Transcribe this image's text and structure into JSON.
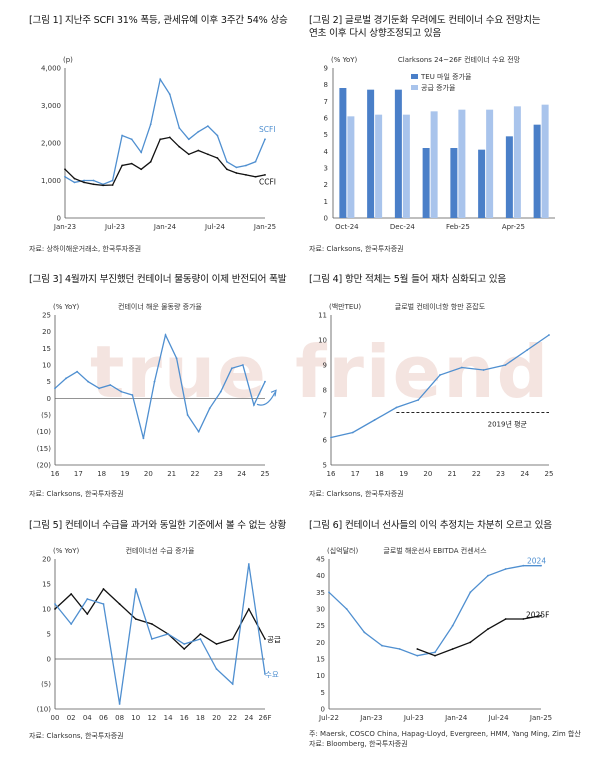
{
  "watermark": "true friend",
  "charts": {
    "c1": {
      "title": "[그림 1] 지난주 SCFI 31% 폭등, 관세유예 이후 3주간 54% 상승",
      "source": "자료: 상하이해운거래소, 한국투자증권",
      "unit": "(p)",
      "yticks": [
        "4,000",
        "3,000",
        "2,000",
        "1,000",
        "0"
      ],
      "xticks": [
        "Jan-23",
        "Jul-23",
        "Jan-24",
        "Jul-24",
        "Jan-25"
      ],
      "label_a": "SCFI",
      "label_b": "CCFI"
    },
    "c2": {
      "title": "[그림 2] 글로벌 경기둔화 우려에도 컨테이너 수요 전망치는\n연초 이후 다시 상향조정되고 있음",
      "source": "자료: Clarksons, 한국투자증권",
      "unit": "(% YoY)",
      "chart_title": "Clarksons 24~26F 컨테이너 수요 전망",
      "legend_a": "TEU 마일 증가율",
      "legend_b": "공급 증가율",
      "yticks": [
        "9",
        "8",
        "7",
        "6",
        "5",
        "4",
        "3",
        "2",
        "1",
        "0"
      ],
      "xticks": [
        "Oct-24",
        "Dec-24",
        "Feb-25",
        "Apr-25"
      ]
    },
    "c3": {
      "title": "[그림 3] 4월까지 부진했던 컨테이너 물동량이 이제 반전되어 폭발",
      "source": "자료: Clarksons, 한국투자증권",
      "unit": "(% YoY)",
      "chart_title": "컨테이너 해운 물동량 증가율",
      "yticks": [
        "25",
        "20",
        "15",
        "10",
        "5",
        "0",
        "(5)",
        "(10)",
        "(15)",
        "(20)"
      ],
      "xticks": [
        "16",
        "17",
        "18",
        "19",
        "20",
        "21",
        "22",
        "23",
        "24",
        "25"
      ]
    },
    "c4": {
      "title": "[그림 4] 항만 적체는 5월 들어 재차 심화되고 있음",
      "source": "자료: Clarksons, 한국투자증권",
      "unit": "(백만TEU)",
      "chart_title": "글로벌 컨테이너항 항만 혼잡도",
      "yticks": [
        "11",
        "10",
        "9",
        "8",
        "7",
        "6",
        "5"
      ],
      "xticks": [
        "16",
        "17",
        "18",
        "19",
        "20",
        "21",
        "22",
        "23",
        "24",
        "25"
      ],
      "annotation": "2019년 평균"
    },
    "c5": {
      "title": "[그림 5] 컨테이너 수급을 과거와 동일한 기준에서 볼 수 없는 상황",
      "source": "자료: Clarksons, 한국투자증권",
      "unit": "(% YoY)",
      "chart_title": "컨테이너선 수급 증가율",
      "yticks": [
        "20",
        "15",
        "10",
        "5",
        "0",
        "(5)",
        "(10)"
      ],
      "xticks": [
        "00",
        "02",
        "04",
        "06",
        "08",
        "10",
        "12",
        "14",
        "16",
        "18",
        "20",
        "22",
        "24",
        "26F"
      ],
      "label_a": "공급",
      "label_b": "수요"
    },
    "c6": {
      "title": "[그림 6] 컨테이너 선사들의 이익 추정치는 차분히 오르고 있음",
      "source_line1": "주: Maersk, COSCO China, Hapag-Lloyd, Evergreen, HMM, Yang Ming, Zim 합산",
      "source_line2": "자료: Bloomberg, 한국투자증권",
      "unit": "(십억달러)",
      "chart_title": "글로벌 해운선사 EBITDA 컨센서스",
      "yticks": [
        "45",
        "40",
        "35",
        "30",
        "25",
        "20",
        "15",
        "10",
        "5",
        "0"
      ],
      "xticks": [
        "Jul-22",
        "Jan-23",
        "Jul-23",
        "Jan-24",
        "Jul-24",
        "Jan-25"
      ],
      "label_a": "2024",
      "label_b": "2025F"
    }
  },
  "chart_data": [
    {
      "type": "line",
      "title": "[그림 1] 지난주 SCFI 31% 폭등, 관세유예 이후 3주간 54% 상승",
      "ylabel": "(p)",
      "ylim": [
        0,
        4000
      ],
      "x": [
        "Jan-23",
        "Mar-23",
        "May-23",
        "Jul-23",
        "Sep-23",
        "Nov-23",
        "Jan-24",
        "Feb-24",
        "Mar-24",
        "May-24",
        "Jul-24",
        "Aug-24",
        "Sep-24",
        "Oct-24",
        "Nov-24",
        "Dec-24",
        "Jan-25",
        "Feb-25",
        "Mar-25",
        "Apr-25",
        "May-25",
        "Jun-25"
      ],
      "series": [
        {
          "name": "SCFI",
          "color": "#4f8fd0",
          "values": [
            1100,
            950,
            1000,
            1000,
            900,
            1000,
            2200,
            2100,
            1750,
            2500,
            3700,
            3300,
            2400,
            2100,
            2300,
            2450,
            2200,
            1500,
            1350,
            1400,
            1500,
            2100
          ]
        },
        {
          "name": "CCFI",
          "color": "#111111",
          "values": [
            1300,
            1050,
            950,
            900,
            870,
            880,
            1400,
            1450,
            1300,
            1500,
            2100,
            2150,
            1900,
            1700,
            1800,
            1700,
            1600,
            1300,
            1200,
            1150,
            1100,
            1150
          ]
        }
      ],
      "grid": false
    },
    {
      "type": "bar",
      "title": "Clarksons 24~26F 컨테이너 수요 전망",
      "ylabel": "(% YoY)",
      "ylim": [
        0,
        9
      ],
      "categories": [
        "Oct-24",
        "Nov-24",
        "Dec-24",
        "Jan-25",
        "Feb-25",
        "Mar-25",
        "Apr-25",
        "May-25"
      ],
      "series": [
        {
          "name": "TEU 마일 증가율",
          "color": "#4a7fc8",
          "values": [
            7.8,
            7.7,
            7.7,
            4.2,
            4.2,
            4.1,
            4.9,
            5.6
          ]
        },
        {
          "name": "공급 증가율",
          "color": "#a9c4ec",
          "values": [
            6.1,
            6.2,
            6.2,
            6.4,
            6.5,
            6.5,
            6.7,
            6.8
          ]
        }
      ],
      "legend": "top-left"
    },
    {
      "type": "line",
      "title": "컨테이너 해운 물동량 증가율",
      "ylabel": "(% YoY)",
      "ylim": [
        -20,
        25
      ],
      "x": [
        "16",
        "16.5",
        "17",
        "17.5",
        "18",
        "18.5",
        "19",
        "19.5",
        "20",
        "20.5",
        "21",
        "21.5",
        "22",
        "22.5",
        "23",
        "23.5",
        "24",
        "24.5",
        "25",
        "25.3"
      ],
      "series": [
        {
          "name": "물동량 증가율",
          "color": "#4f8fd0",
          "values": [
            3,
            6,
            8,
            5,
            3,
            4,
            2,
            1,
            -12,
            5,
            19,
            12,
            -5,
            -10,
            -3,
            2,
            9,
            10,
            -2,
            5
          ]
        }
      ],
      "grid": false
    },
    {
      "type": "line",
      "title": "글로벌 컨테이너항 항만 혼잡도",
      "ylabel": "(백만TEU)",
      "ylim": [
        5,
        11
      ],
      "x": [
        "16",
        "17",
        "18",
        "19",
        "20",
        "21",
        "22",
        "23",
        "24",
        "25",
        "25.4"
      ],
      "series": [
        {
          "name": "항만 혼잡도",
          "color": "#4f8fd0",
          "values": [
            6.1,
            6.3,
            6.8,
            7.3,
            7.6,
            8.6,
            8.9,
            8.8,
            9.0,
            9.6,
            10.2
          ]
        }
      ],
      "reference_lines": [
        {
          "label": "2019년 평균",
          "value": 7.1
        }
      ]
    },
    {
      "type": "line",
      "title": "컨테이너선 수급 증가율",
      "ylabel": "(% YoY)",
      "ylim": [
        -10,
        20
      ],
      "x": [
        "00",
        "02",
        "04",
        "06",
        "08",
        "10",
        "12",
        "14",
        "16",
        "18",
        "20",
        "22",
        "24",
        "26F"
      ],
      "series": [
        {
          "name": "공급",
          "color": "#111111",
          "values": [
            10,
            13,
            9,
            14,
            11,
            8,
            7,
            5,
            2,
            5,
            3,
            4,
            10,
            4
          ]
        },
        {
          "name": "수요",
          "color": "#4f8fd0",
          "values": [
            11,
            7,
            12,
            11,
            -9,
            14,
            4,
            5,
            3,
            4,
            -2,
            -5,
            19,
            -3
          ]
        }
      ]
    },
    {
      "type": "line",
      "title": "글로벌 해운선사 EBITDA 컨센서스",
      "ylabel": "(십억달러)",
      "ylim": [
        0,
        45
      ],
      "x": [
        "Jul-22",
        "Oct-22",
        "Jan-23",
        "Apr-23",
        "Jul-23",
        "Oct-23",
        "Jan-24",
        "Apr-24",
        "Jul-24",
        "Oct-24",
        "Jan-25",
        "Apr-25",
        "Jun-25"
      ],
      "series": [
        {
          "name": "2024",
          "color": "#4f8fd0",
          "values": [
            35,
            30,
            23,
            19,
            18,
            16,
            17,
            25,
            35,
            40,
            42,
            43,
            43
          ]
        },
        {
          "name": "2025F",
          "color": "#111111",
          "values": [
            null,
            null,
            null,
            null,
            null,
            18,
            16,
            18,
            20,
            24,
            27,
            27,
            28
          ]
        }
      ]
    }
  ]
}
